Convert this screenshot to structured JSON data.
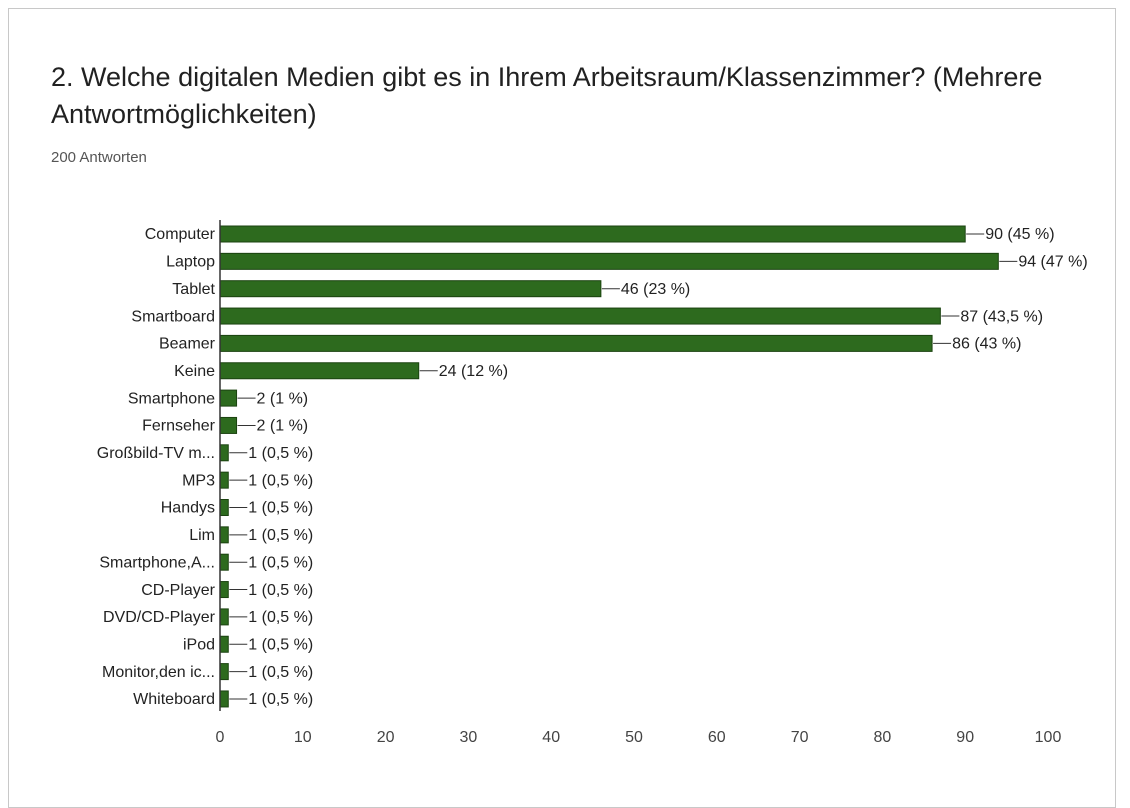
{
  "chart_data": {
    "type": "bar",
    "orientation": "horizontal",
    "title": "2. Welche digitalen Medien gibt es in Ihrem Arbeitsraum/Klassenzimmer? (Mehrere Antwortmöglichkeiten)",
    "subtitle": "200 Antworten",
    "categories": [
      "Computer",
      "Laptop",
      "Tablet",
      "Smartboard",
      "Beamer",
      "Keine",
      "Smartphone",
      "Fernseher",
      "Großbild-TV m...",
      "MP3",
      "Handys",
      "Lim",
      "Smartphone,A...",
      "CD-Player",
      "DVD/CD-Player",
      "iPod",
      "Monitor,den ic...",
      "Whiteboard"
    ],
    "values": [
      90,
      94,
      46,
      87,
      86,
      24,
      2,
      2,
      1,
      1,
      1,
      1,
      1,
      1,
      1,
      1,
      1,
      1
    ],
    "value_labels": [
      "90 (45 %)",
      "94 (47 %)",
      "46 (23 %)",
      "87 (43,5 %)",
      "86 (43 %)",
      "24 (12 %)",
      "2 (1 %)",
      "2 (1 %)",
      "1 (0,5 %)",
      "1 (0,5 %)",
      "1 (0,5 %)",
      "1 (0,5 %)",
      "1 (0,5 %)",
      "1 (0,5 %)",
      "1 (0,5 %)",
      "1 (0,5 %)",
      "1 (0,5 %)",
      "1 (0,5 %)"
    ],
    "color": "#2d6a1e",
    "xlim": [
      0,
      100
    ],
    "xticks": [
      0,
      10,
      20,
      30,
      40,
      50,
      60,
      70,
      80,
      90,
      100
    ],
    "grid": false
  }
}
